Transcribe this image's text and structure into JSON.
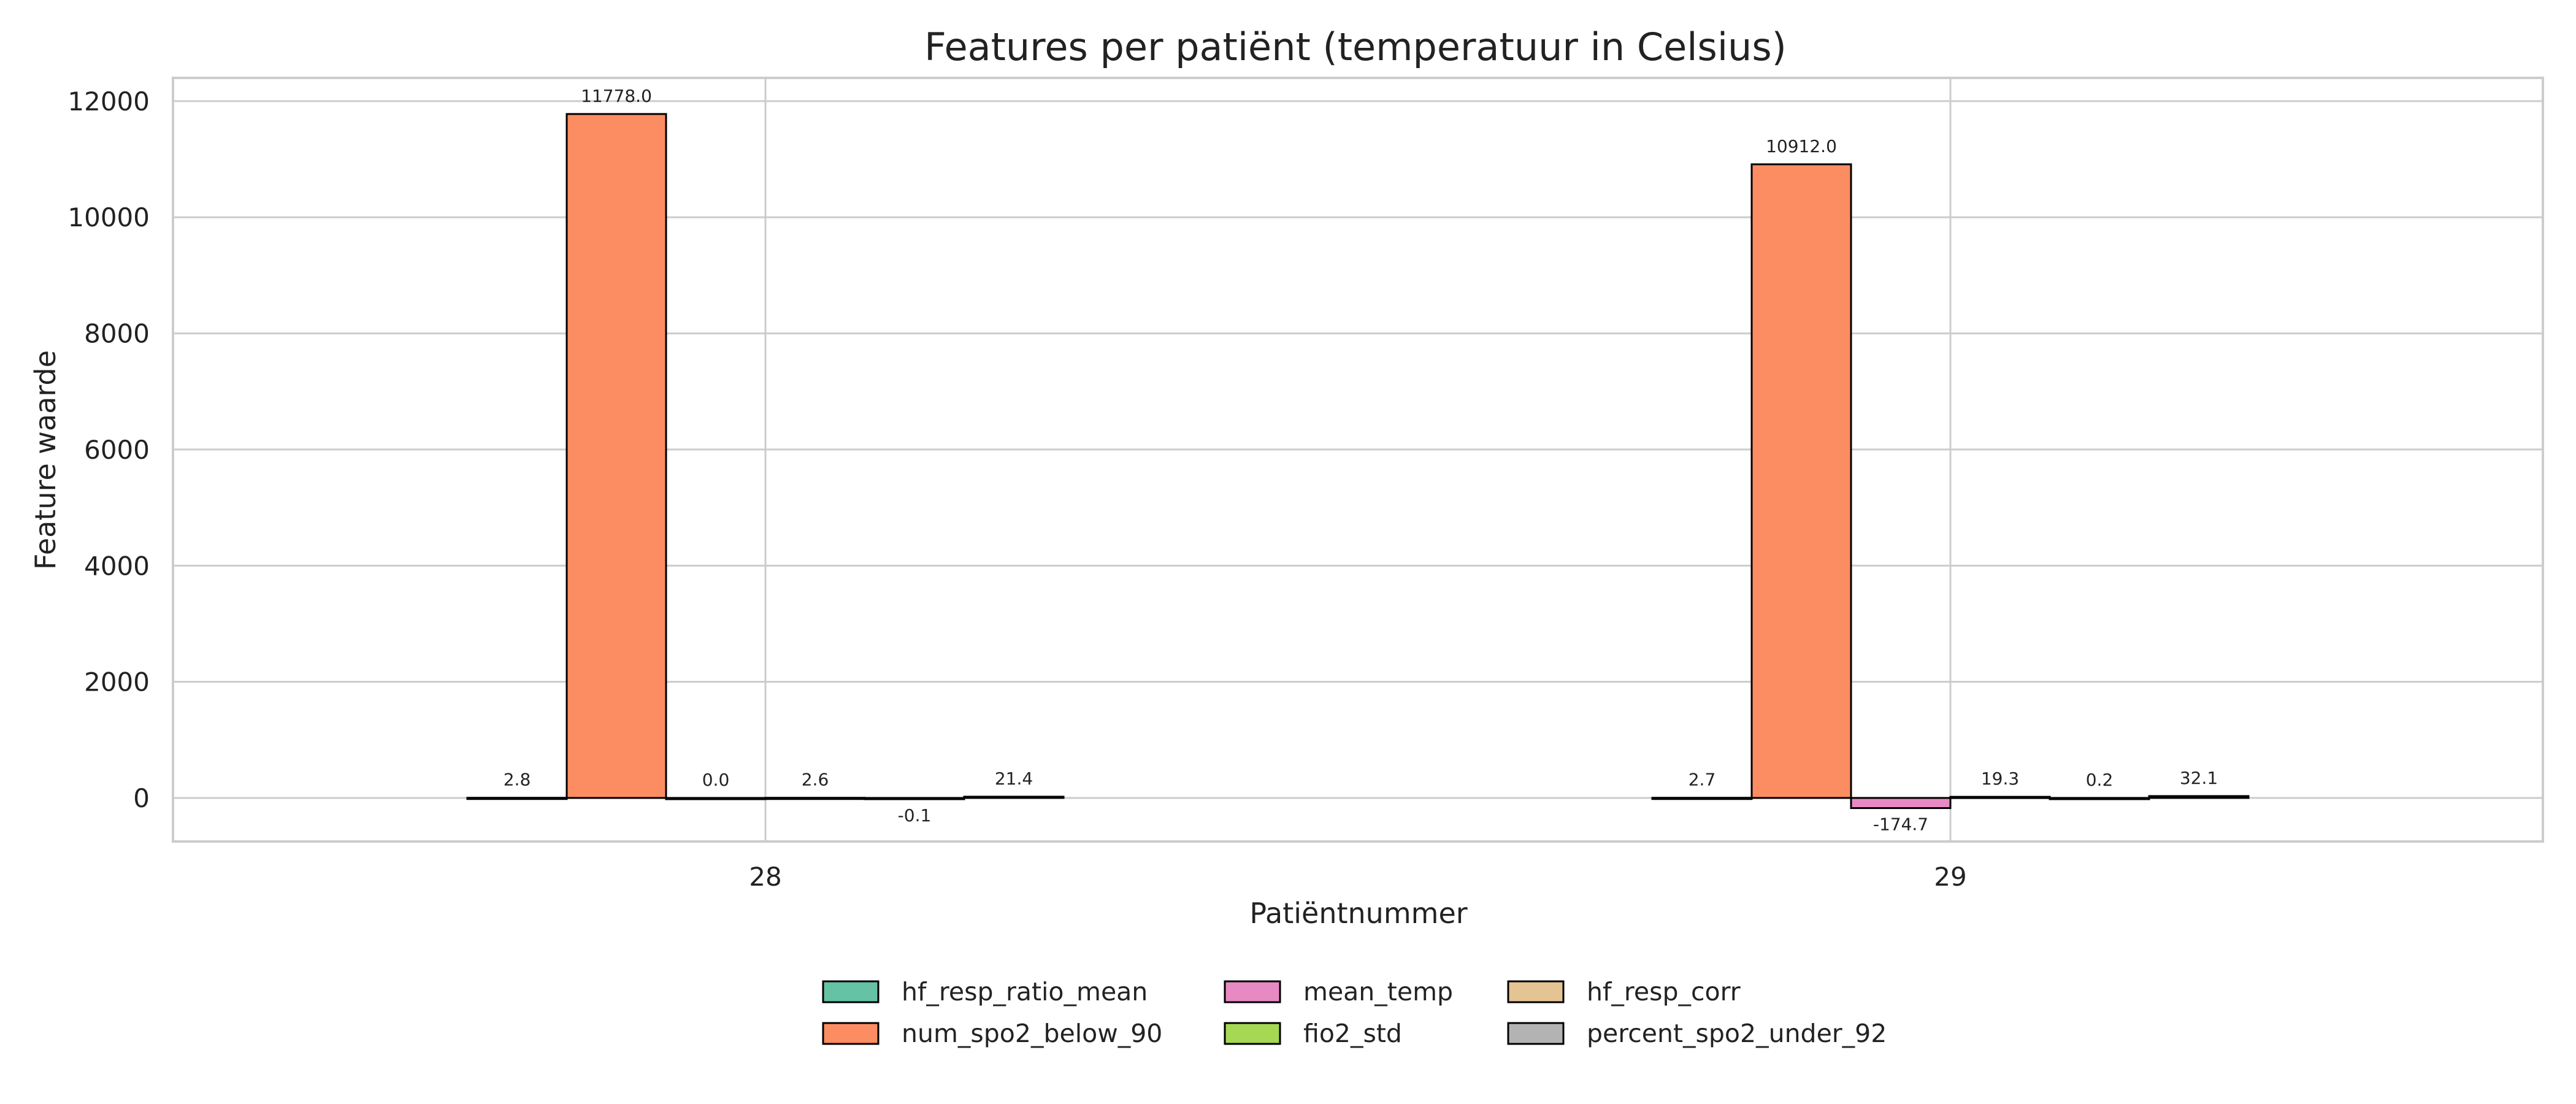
{
  "chart_data": {
    "type": "bar",
    "title": "Features per patiënt (temperatuur in Celsius)",
    "xlabel": "Patiëntnummer",
    "ylabel": "Feature waarde",
    "categories": [
      "28",
      "29"
    ],
    "ylim": [
      -750,
      12400
    ],
    "yticks": [
      0,
      2000,
      4000,
      6000,
      8000,
      10000,
      12000
    ],
    "grid": true,
    "legend_position": "bottom-center",
    "series": [
      {
        "name": "hf_resp_ratio_mean",
        "color": "#66c2a5",
        "values": [
          2.8,
          2.7
        ],
        "labels": [
          "2.8",
          "2.7"
        ]
      },
      {
        "name": "num_spo2_below_90",
        "color": "#fc8d62",
        "values": [
          11778.0,
          10912.0
        ],
        "labels": [
          "11778.0",
          "10912.0"
        ]
      },
      {
        "name": "mean_temp",
        "color": "#e78ac3",
        "values": [
          0.0,
          -174.7
        ],
        "labels": [
          "0.0",
          "-174.7"
        ]
      },
      {
        "name": "fio2_std",
        "color": "#a6d854",
        "values": [
          2.6,
          19.3
        ],
        "labels": [
          "2.6",
          "19.3"
        ]
      },
      {
        "name": "hf_resp_corr",
        "color": "#e5c494",
        "values": [
          -0.1,
          0.2
        ],
        "labels": [
          "-0.1",
          "0.2"
        ]
      },
      {
        "name": "percent_spo2_under_92",
        "color": "#b3b3b3",
        "values": [
          21.4,
          32.1
        ],
        "labels": [
          "21.4",
          "32.1"
        ]
      }
    ]
  }
}
